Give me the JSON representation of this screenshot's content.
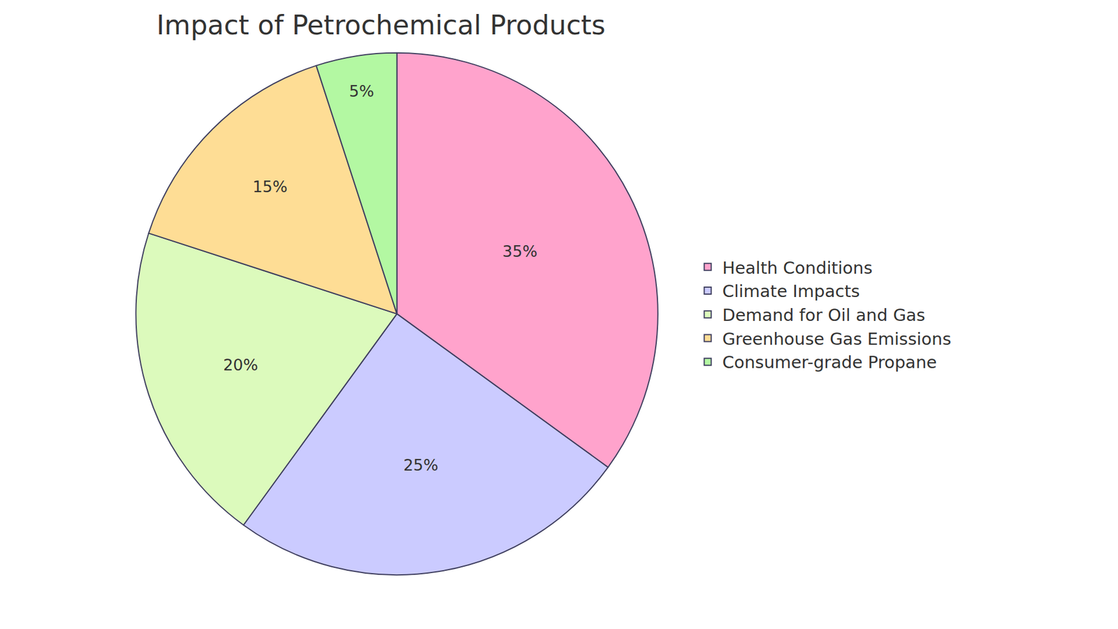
{
  "chart_data": {
    "type": "pie",
    "title": "Impact of Petrochemical Products",
    "categories": [
      "Health Conditions",
      "Climate Impacts",
      "Demand for Oil and Gas",
      "Greenhouse Gas Emissions",
      "Consumer-grade Propane"
    ],
    "values": [
      35,
      25,
      20,
      15,
      5
    ],
    "value_labels": [
      "35%",
      "25%",
      "20%",
      "15%",
      "5%"
    ],
    "colors": [
      "#ffa3cc",
      "#cbcbff",
      "#dcfabc",
      "#fedd95",
      "#b3f8a2"
    ],
    "data_labels": true,
    "legend": "right"
  }
}
